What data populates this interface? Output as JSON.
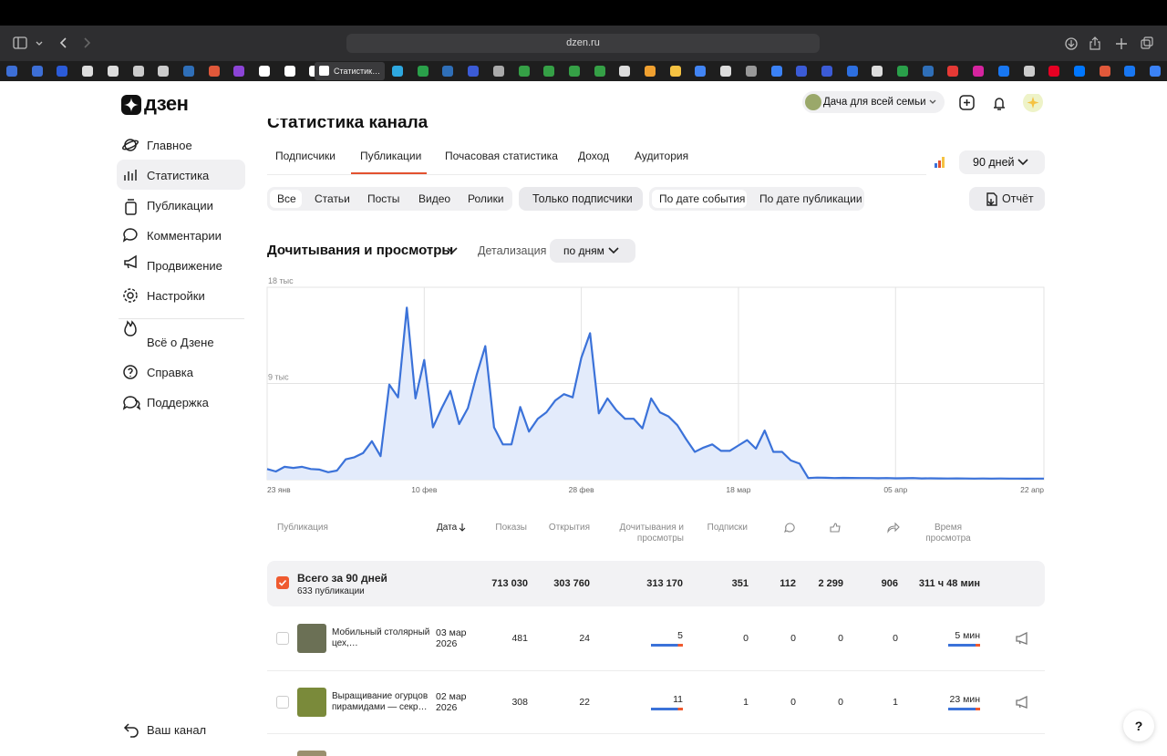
{
  "browser": {
    "url": "dzen.ru",
    "active_tab": "Статистик…"
  },
  "sidebar": {
    "logo": "дзен",
    "nav": [
      "Главное",
      "Статистика",
      "Публикации",
      "Комментарии",
      "Продвижение",
      "Настройки"
    ],
    "more": [
      "Всё о Дзене",
      "Справка",
      "Поддержка"
    ],
    "footer": "Ваш канал"
  },
  "header": {
    "channel": "Дача для всей семьи"
  },
  "page_title": "Статистика канала",
  "tabs": [
    "Подписчики",
    "Публикации",
    "Почасовая статистика",
    "Доход",
    "Аудитория"
  ],
  "period": "90 дней",
  "filters": {
    "types": [
      "Все",
      "Статьи",
      "Посты",
      "Видео",
      "Ролики"
    ],
    "subscribers_only": "Только подписчики",
    "date_modes": [
      "По дате события",
      "По дате публикации"
    ],
    "report": "Отчёт"
  },
  "metric": {
    "name": "Дочитывания и просмотры",
    "detail_label": "Детализация",
    "detail_value": "по дням"
  },
  "chart_data": {
    "type": "line",
    "x": [
      0,
      1,
      2,
      3,
      4,
      5,
      6,
      7,
      8,
      9,
      10,
      11,
      12,
      13,
      14,
      15,
      16,
      17,
      18,
      19,
      20,
      21,
      22,
      23,
      24,
      25,
      26,
      27,
      28,
      29,
      30,
      31,
      32,
      33,
      34,
      35,
      36,
      37,
      38,
      39,
      40,
      41,
      42,
      43,
      44,
      45,
      46,
      47,
      48,
      49,
      50,
      51,
      52,
      53,
      54,
      55,
      56,
      57,
      58,
      59,
      60,
      61,
      62,
      63,
      64,
      65,
      66,
      67,
      68,
      69,
      70,
      71,
      72,
      73,
      74,
      75,
      76,
      77,
      78,
      79,
      80,
      81,
      82,
      83,
      84,
      85,
      86,
      87,
      88,
      89
    ],
    "values": [
      1000,
      770,
      1200,
      1100,
      1200,
      1000,
      950,
      700,
      850,
      1900,
      2100,
      2500,
      3600,
      2200,
      8900,
      7700,
      16100,
      7600,
      11200,
      4900,
      6700,
      8300,
      5200,
      6700,
      9800,
      12500,
      4900,
      3300,
      3300,
      6800,
      4500,
      5700,
      6300,
      7400,
      8000,
      7700,
      11400,
      13700,
      6200,
      7600,
      6500,
      5700,
      5700,
      4800,
      7600,
      6300,
      5900,
      5100,
      3800,
      2600,
      3000,
      3300,
      2700,
      2700,
      3200,
      3700,
      2900,
      4600,
      2600,
      2600,
      1800,
      1500,
      150,
      200,
      180,
      150,
      170,
      160,
      150,
      150,
      140,
      150,
      130,
      140,
      150,
      120,
      130,
      120,
      110,
      120,
      110,
      100,
      110,
      100,
      110,
      100,
      100,
      90,
      100,
      100
    ],
    "color": "#3b72d9",
    "area_color": "#e3ebfb",
    "xlim": [
      0,
      89
    ],
    "xticks": [
      {
        "value": 0,
        "label": "23 янв"
      },
      {
        "value": 18,
        "label": "10 фев"
      },
      {
        "value": 36,
        "label": "28 фев"
      },
      {
        "value": 54,
        "label": "18 мар"
      },
      {
        "value": 72,
        "label": "05 апр"
      },
      {
        "value": 89,
        "label": "22 апр"
      }
    ],
    "ylim": [
      0,
      18000
    ],
    "yticks": [
      0,
      {
        "value": 9000,
        "label": "9 тыс"
      },
      {
        "value": 18000,
        "label": "18 тыс"
      }
    ],
    "grid": true
  },
  "table": {
    "headers": [
      "Публикация",
      "Дата",
      "Показы",
      "Открытия",
      "Дочитывания и просмотры",
      "Подписки",
      "Время просмотра"
    ],
    "total": [
      "Всего за 90 дней",
      "633 публикации",
      "713 030",
      "303 760",
      "313 170",
      "351",
      "112",
      "2 299",
      "906",
      "311 ч 48 мин"
    ],
    "rows": [
      [
        "Мобильный столярный цех,…",
        "03 мар 2026",
        "481",
        "24",
        "5",
        "0",
        "0",
        "0",
        "0",
        "5 мин"
      ],
      [
        "Выращивание огурцов пирамидами — секр…",
        "02 мар 2026",
        "308",
        "22",
        "11",
        "1",
        "0",
        "0",
        "1",
        "23 мин"
      ]
    ]
  },
  "help": "?"
}
